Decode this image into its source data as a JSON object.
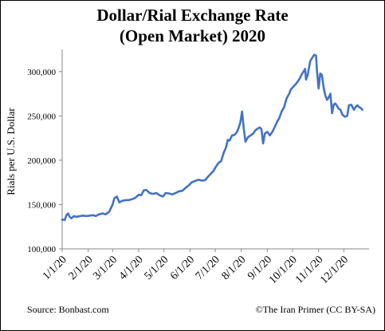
{
  "chart_data": {
    "type": "line",
    "title_line1": "Dollar/Rial Exchange Rate",
    "title_line2": "(Open Market) 2020",
    "ylabel": "Rials per U.S. Dollar",
    "xlabel": "",
    "ylim": [
      100000,
      325000
    ],
    "yticks": [
      100000,
      150000,
      200000,
      250000,
      300000
    ],
    "ytick_labels": [
      "100,000",
      "150,000",
      "200,000",
      "250,000",
      "300,000"
    ],
    "xticks": [
      "2020-01-01",
      "2020-02-01",
      "2020-03-01",
      "2020-04-01",
      "2020-05-01",
      "2020-06-01",
      "2020-07-01",
      "2020-08-01",
      "2020-09-01",
      "2020-10-01",
      "2020-11-01",
      "2020-12-01"
    ],
    "xtick_labels": [
      "1/1/20",
      "2/1/20",
      "3/1/20",
      "4/1/20",
      "5/1/20",
      "6/1/20",
      "7/1/20",
      "8/1/20",
      "9/1/20",
      "10/1/20",
      "11/1/20",
      "12/1/20"
    ],
    "xlim": [
      "2020-01-01",
      "2020-12-31"
    ],
    "grid": false,
    "legend": "none",
    "series": [
      {
        "color": "#4472C4",
        "points": [
          [
            "2020-01-01",
            133000
          ],
          [
            "2020-01-04",
            132500
          ],
          [
            "2020-01-06",
            138000
          ],
          [
            "2020-01-08",
            140000
          ],
          [
            "2020-01-10",
            136000
          ],
          [
            "2020-01-12",
            134500
          ],
          [
            "2020-01-15",
            137000
          ],
          [
            "2020-01-18",
            136000
          ],
          [
            "2020-01-22",
            137000
          ],
          [
            "2020-01-26",
            137500
          ],
          [
            "2020-01-30",
            137000
          ],
          [
            "2020-02-03",
            137500
          ],
          [
            "2020-02-07",
            138000
          ],
          [
            "2020-02-10",
            137000
          ],
          [
            "2020-02-14",
            139000
          ],
          [
            "2020-02-18",
            140000
          ],
          [
            "2020-02-22",
            139000
          ],
          [
            "2020-02-26",
            142000
          ],
          [
            "2020-03-01",
            150000
          ],
          [
            "2020-03-03",
            157000
          ],
          [
            "2020-03-06",
            159000
          ],
          [
            "2020-03-09",
            152500
          ],
          [
            "2020-03-12",
            154000
          ],
          [
            "2020-03-16",
            155000
          ],
          [
            "2020-03-20",
            155000
          ],
          [
            "2020-03-24",
            156000
          ],
          [
            "2020-03-28",
            157500
          ],
          [
            "2020-04-01",
            161000
          ],
          [
            "2020-04-04",
            160500
          ],
          [
            "2020-04-07",
            166000
          ],
          [
            "2020-04-10",
            166500
          ],
          [
            "2020-04-14",
            163000
          ],
          [
            "2020-04-18",
            162000
          ],
          [
            "2020-04-22",
            163000
          ],
          [
            "2020-04-26",
            160500
          ],
          [
            "2020-04-30",
            159000
          ],
          [
            "2020-05-03",
            163000
          ],
          [
            "2020-05-07",
            162500
          ],
          [
            "2020-05-11",
            161500
          ],
          [
            "2020-05-15",
            163000
          ],
          [
            "2020-05-19",
            165000
          ],
          [
            "2020-05-23",
            165500
          ],
          [
            "2020-05-27",
            169000
          ],
          [
            "2020-05-31",
            172000
          ],
          [
            "2020-06-03",
            175000
          ],
          [
            "2020-06-07",
            176500
          ],
          [
            "2020-06-11",
            178000
          ],
          [
            "2020-06-15",
            177000
          ],
          [
            "2020-06-19",
            177500
          ],
          [
            "2020-06-23",
            182000
          ],
          [
            "2020-06-26",
            185000
          ],
          [
            "2020-06-29",
            188000
          ],
          [
            "2020-07-02",
            193000
          ],
          [
            "2020-07-05",
            197000
          ],
          [
            "2020-07-08",
            199000
          ],
          [
            "2020-07-11",
            208000
          ],
          [
            "2020-07-14",
            215000
          ],
          [
            "2020-07-16",
            223000
          ],
          [
            "2020-07-18",
            222000
          ],
          [
            "2020-07-21",
            228000
          ],
          [
            "2020-07-24",
            228500
          ],
          [
            "2020-07-27",
            232000
          ],
          [
            "2020-07-29",
            237000
          ],
          [
            "2020-07-31",
            243000
          ],
          [
            "2020-08-02",
            255000
          ],
          [
            "2020-08-04",
            236000
          ],
          [
            "2020-08-06",
            221000
          ],
          [
            "2020-08-09",
            226000
          ],
          [
            "2020-08-12",
            228000
          ],
          [
            "2020-08-15",
            230000
          ],
          [
            "2020-08-18",
            234000
          ],
          [
            "2020-08-21",
            236000
          ],
          [
            "2020-08-23",
            237000
          ],
          [
            "2020-08-25",
            235000
          ],
          [
            "2020-08-27",
            219000
          ],
          [
            "2020-08-29",
            230000
          ],
          [
            "2020-09-01",
            232000
          ],
          [
            "2020-09-04",
            228000
          ],
          [
            "2020-09-07",
            232000
          ],
          [
            "2020-09-10",
            238000
          ],
          [
            "2020-09-13",
            244000
          ],
          [
            "2020-09-15",
            247000
          ],
          [
            "2020-09-18",
            255000
          ],
          [
            "2020-09-21",
            260000
          ],
          [
            "2020-09-24",
            270000
          ],
          [
            "2020-09-27",
            275000
          ],
          [
            "2020-09-29",
            280000
          ],
          [
            "2020-10-02",
            283000
          ],
          [
            "2020-10-05",
            286000
          ],
          [
            "2020-10-08",
            290000
          ],
          [
            "2020-10-10",
            293000
          ],
          [
            "2020-10-12",
            297000
          ],
          [
            "2020-10-14",
            300000
          ],
          [
            "2020-10-16",
            303000
          ],
          [
            "2020-10-17",
            291000
          ],
          [
            "2020-10-19",
            296000
          ],
          [
            "2020-10-22",
            312000
          ],
          [
            "2020-10-24",
            315000
          ],
          [
            "2020-10-26",
            318000
          ],
          [
            "2020-10-27",
            319000
          ],
          [
            "2020-10-29",
            318000
          ],
          [
            "2020-10-30",
            302000
          ],
          [
            "2020-11-01",
            281000
          ],
          [
            "2020-11-03",
            298000
          ],
          [
            "2020-11-05",
            296000
          ],
          [
            "2020-11-07",
            282000
          ],
          [
            "2020-11-09",
            273000
          ],
          [
            "2020-11-11",
            268000
          ],
          [
            "2020-11-13",
            271000
          ],
          [
            "2020-11-15",
            275000
          ],
          [
            "2020-11-17",
            253000
          ],
          [
            "2020-11-19",
            263000
          ],
          [
            "2020-11-21",
            264000
          ],
          [
            "2020-11-23",
            261000
          ],
          [
            "2020-11-25",
            258000
          ],
          [
            "2020-11-27",
            257000
          ],
          [
            "2020-11-29",
            252000
          ],
          [
            "2020-12-02",
            249000
          ],
          [
            "2020-12-05",
            250000
          ],
          [
            "2020-12-07",
            262000
          ],
          [
            "2020-12-10",
            262500
          ],
          [
            "2020-12-13",
            257000
          ],
          [
            "2020-12-15",
            260000
          ],
          [
            "2020-12-17",
            262000
          ],
          [
            "2020-12-19",
            260000
          ],
          [
            "2020-12-21",
            259000
          ],
          [
            "2020-12-23",
            257000
          ]
        ]
      }
    ]
  },
  "footer": {
    "source": "Source: Bonbast.com",
    "credit": "©The Iran Primer  (CC  BY-SA)"
  },
  "colors": {
    "line": "#4472C4",
    "axis": "#888888",
    "text": "#000000"
  }
}
